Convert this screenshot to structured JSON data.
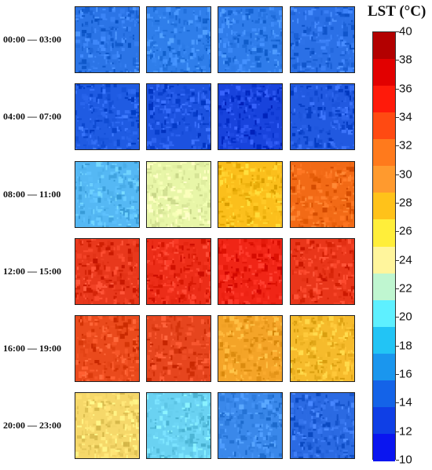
{
  "figure": {
    "legend_title": "LST (°C)",
    "time_rows": [
      {
        "label": "00:00 — 03:00",
        "tiles": [
          {
            "base": "#2b74e6"
          },
          {
            "base": "#2f7eea"
          },
          {
            "base": "#2f7cea"
          },
          {
            "base": "#2b70e6"
          }
        ]
      },
      {
        "label": "04:00 — 07:00",
        "tiles": [
          {
            "base": "#1f5be2"
          },
          {
            "base": "#1c52df"
          },
          {
            "base": "#1843dc"
          },
          {
            "base": "#2159e0"
          }
        ]
      },
      {
        "label": "08:00 — 11:00",
        "tiles": [
          {
            "base": "#55b8f4"
          },
          {
            "base": "#e8f6a8"
          },
          {
            "base": "#fbbf1c"
          },
          {
            "base": "#f26a16"
          }
        ]
      },
      {
        "label": "12:00 — 15:00",
        "tiles": [
          {
            "base": "#e8381c"
          },
          {
            "base": "#ec2d18"
          },
          {
            "base": "#f02516"
          },
          {
            "base": "#e9361a"
          }
        ]
      },
      {
        "label": "16:00 — 19:00",
        "tiles": [
          {
            "base": "#ea4a1c"
          },
          {
            "base": "#e6451e"
          },
          {
            "base": "#f4a428"
          },
          {
            "base": "#f6bb2c"
          }
        ]
      },
      {
        "label": "20:00 — 23:00",
        "tiles": [
          {
            "base": "#f6d86a"
          },
          {
            "base": "#6ad2f2"
          },
          {
            "base": "#3a88ea"
          },
          {
            "base": "#2b6ae2"
          }
        ]
      }
    ],
    "colorbar": {
      "ticks": [
        "40",
        "38",
        "36",
        "34",
        "32",
        "30",
        "28",
        "26",
        "24",
        "22",
        "20",
        "18",
        "16",
        "14",
        "12",
        "10"
      ],
      "colors": [
        "#b30000",
        "#e20000",
        "#ff1a0a",
        "#ff4a12",
        "#ff7a1c",
        "#ff9a2e",
        "#ffc21a",
        "#ffee3a",
        "#fff59c",
        "#bff6d0",
        "#5ef0ff",
        "#22c4f5",
        "#1a96ee",
        "#1463e8",
        "#0f3fe6",
        "#0a15f0"
      ]
    }
  }
}
